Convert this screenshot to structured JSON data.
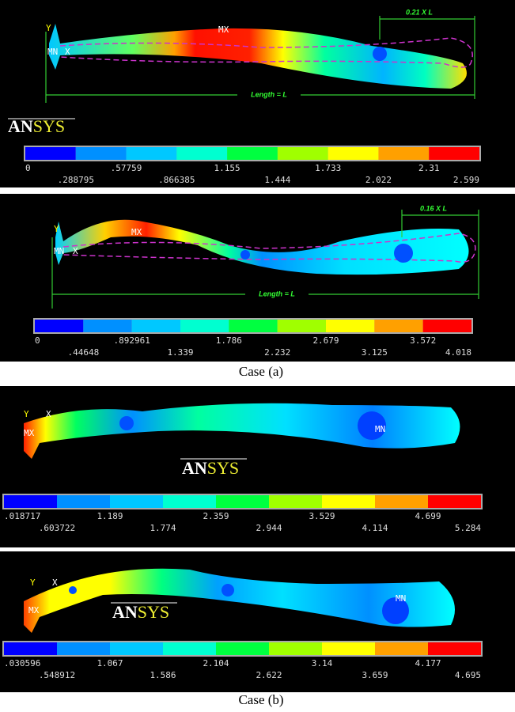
{
  "logo_a": "AN",
  "logo_b": "SYS",
  "captions": [
    "Case (a)",
    "Case (b)"
  ],
  "colors": [
    "#0000ff",
    "#0090ff",
    "#00c8ff",
    "#00ffd0",
    "#00ff40",
    "#a0ff00",
    "#ffff00",
    "#ffa000",
    "#ff0000"
  ],
  "panels": [
    {
      "axis_y": "Y",
      "axis_x": "X",
      "min": "MN",
      "max": "MX",
      "dimension": "0.21 X L",
      "length": "Length = L",
      "legend_top": [
        "0",
        ".57759",
        "1.155",
        "1.733",
        "2.31"
      ],
      "legend_bottom": [
        ".288795",
        ".866385",
        "1.444",
        "2.022",
        "2.599"
      ]
    },
    {
      "axis_y": "Y",
      "axis_x": "X",
      "min": "MN",
      "max": "MX",
      "dimension": "0.16 X L",
      "length": "Length = L",
      "legend_top": [
        "0",
        ".892961",
        "1.786",
        "2.679",
        "3.572"
      ],
      "legend_bottom": [
        ".44648",
        "1.339",
        "2.232",
        "3.125",
        "4.018"
      ]
    },
    {
      "axis_y": "Y",
      "axis_x": "X",
      "min": "MN",
      "max": "MX",
      "legend_top": [
        ".018717",
        "1.189",
        "2.359",
        "3.529",
        "4.699"
      ],
      "legend_bottom": [
        ".603722",
        "1.774",
        "2.944",
        "4.114",
        "5.284"
      ]
    },
    {
      "axis_y": "Y",
      "axis_x": "X",
      "min": "MN",
      "max": "MX",
      "legend_top": [
        ".030596",
        "1.067",
        "2.104",
        "3.14",
        "4.177"
      ],
      "legend_bottom": [
        ".548912",
        "1.586",
        "2.622",
        "3.659",
        "4.695"
      ]
    }
  ]
}
